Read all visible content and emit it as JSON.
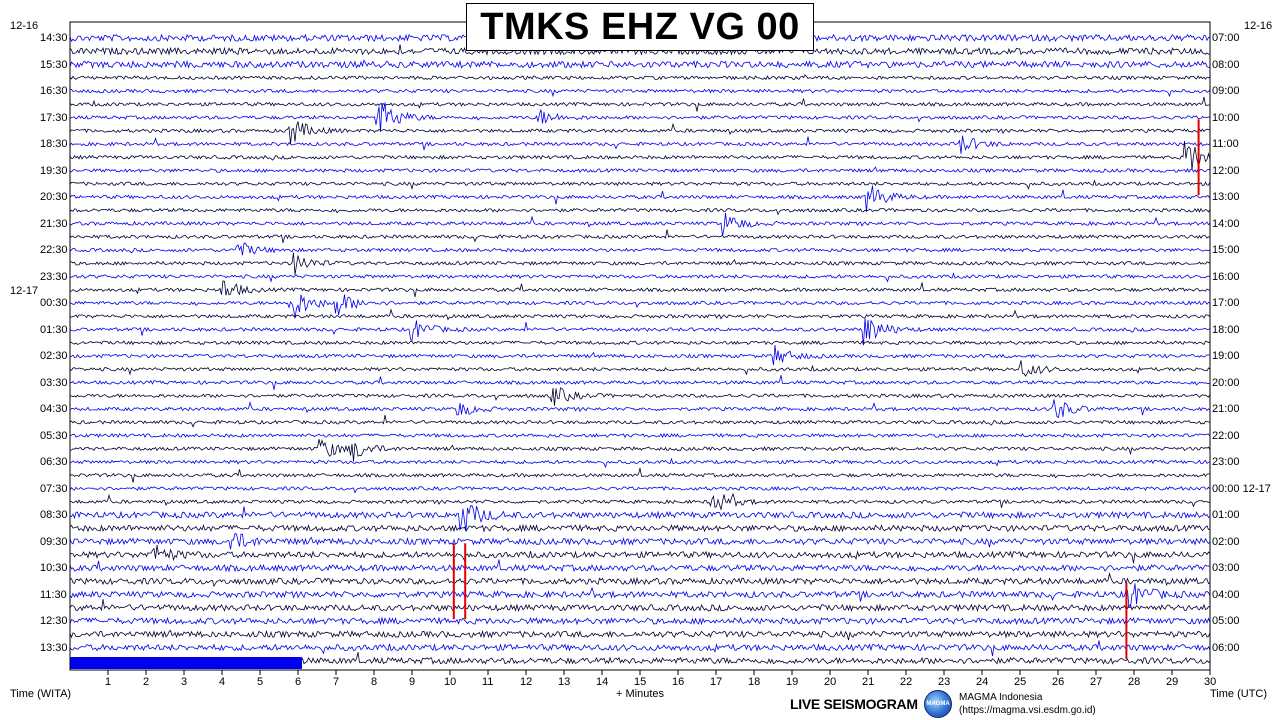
{
  "title": "TMKS EHZ VG 00",
  "left_header": {
    "date_top": "12-16",
    "date_mid": "12-17",
    "axis_label": "Time (WITA)"
  },
  "right_header": {
    "date_top": "12-16",
    "date_mid": "12-17",
    "axis_label": "Time (UTC)"
  },
  "x_axis_label": "+ Minutes",
  "footer": {
    "live_label": "LIVE SEISMOGRAM",
    "org_name": "MAGMA Indonesia",
    "org_url": "(https://magma.vsi.esdm.go.id)",
    "logo_text": "MAGMA"
  },
  "chart_data": {
    "type": "line",
    "title": "TMKS EHZ VG 00",
    "xlabel": "+ Minutes",
    "xlim": [
      0,
      30
    ],
    "x_ticks": [
      1,
      2,
      3,
      4,
      5,
      6,
      7,
      8,
      9,
      10,
      11,
      12,
      13,
      14,
      15,
      16,
      17,
      18,
      19,
      20,
      21,
      22,
      23,
      24,
      25,
      26,
      27,
      28,
      29,
      30
    ],
    "trace_count": 48,
    "trace_colors": [
      "#0000ee",
      "#000033",
      "#1a1aa0"
    ],
    "left_time_labels": [
      "14:30",
      "15:30",
      "16:30",
      "17:30",
      "18:30",
      "19:30",
      "20:30",
      "21:30",
      "22:30",
      "23:30",
      "00:30",
      "01:30",
      "02:30",
      "03:30",
      "04:30",
      "05:30",
      "06:30",
      "07:30",
      "08:30",
      "09:30",
      "10:30",
      "11:30",
      "12:30",
      "13:30"
    ],
    "right_time_labels": [
      "07:00",
      "08:00",
      "09:00",
      "10:00",
      "11:00",
      "12:00",
      "13:00",
      "14:00",
      "15:00",
      "16:00",
      "17:00",
      "18:00",
      "19:00",
      "20:00",
      "21:00",
      "22:00",
      "23:00",
      "00:00 12-17",
      "01:00",
      "02:00",
      "03:00",
      "04:00",
      "05:00",
      "06:00"
    ],
    "events": [
      {
        "trace": 6,
        "minute": 8.1,
        "amplitude": 2.5
      },
      {
        "trace": 6,
        "minute": 12.3,
        "amplitude": 1.0
      },
      {
        "trace": 7,
        "minute": 5.8,
        "amplitude": 1.6
      },
      {
        "trace": 8,
        "minute": 23.4,
        "amplitude": 1.2
      },
      {
        "trace": 9,
        "minute": 29.3,
        "amplitude": 2.6
      },
      {
        "trace": 12,
        "minute": 21.0,
        "amplitude": 1.6
      },
      {
        "trace": 14,
        "minute": 17.2,
        "amplitude": 1.3
      },
      {
        "trace": 16,
        "minute": 4.4,
        "amplitude": 1.0
      },
      {
        "trace": 17,
        "minute": 5.9,
        "amplitude": 1.2
      },
      {
        "trace": 19,
        "minute": 4.0,
        "amplitude": 1.3
      },
      {
        "trace": 20,
        "minute": 5.8,
        "amplitude": 2.2
      },
      {
        "trace": 20,
        "minute": 7.0,
        "amplitude": 1.4
      },
      {
        "trace": 22,
        "minute": 9.0,
        "amplitude": 1.2
      },
      {
        "trace": 22,
        "minute": 20.9,
        "amplitude": 2.0
      },
      {
        "trace": 24,
        "minute": 18.5,
        "amplitude": 1.2
      },
      {
        "trace": 25,
        "minute": 25.0,
        "amplitude": 1.0
      },
      {
        "trace": 27,
        "minute": 12.7,
        "amplitude": 1.2
      },
      {
        "trace": 28,
        "minute": 10.2,
        "amplitude": 0.9
      },
      {
        "trace": 28,
        "minute": 25.9,
        "amplitude": 1.3
      },
      {
        "trace": 31,
        "minute": 6.6,
        "amplitude": 1.3
      },
      {
        "trace": 31,
        "minute": 7.4,
        "amplitude": 1.3
      },
      {
        "trace": 35,
        "minute": 16.9,
        "amplitude": 1.4
      },
      {
        "trace": 36,
        "minute": 10.3,
        "amplitude": 2.0
      },
      {
        "trace": 38,
        "minute": 4.2,
        "amplitude": 1.2
      },
      {
        "trace": 39,
        "minute": 2.2,
        "amplitude": 1.0
      },
      {
        "trace": 42,
        "minute": 27.8,
        "amplitude": 1.8
      }
    ],
    "clipped_markers": [
      {
        "trace": 9,
        "minute": 29.7
      },
      {
        "trace": 41,
        "minute": 10.1
      },
      {
        "trace": 41,
        "minute": 10.4
      },
      {
        "trace": 44,
        "minute": 27.8
      }
    ]
  }
}
